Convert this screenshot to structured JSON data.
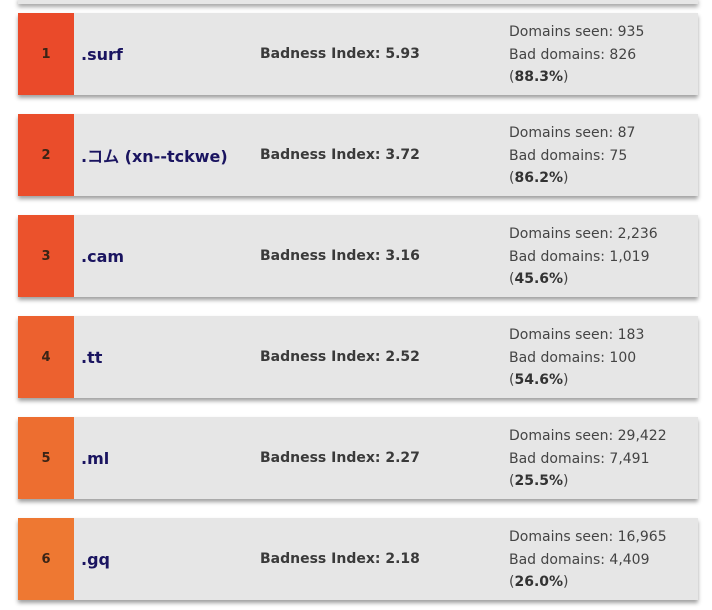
{
  "rows": [
    {
      "rank": "1",
      "tld": ".surf",
      "badness_label": "Badness Index: 5.93",
      "domains_seen": "Domains seen: 935",
      "bad_domains": "Bad domains: 826",
      "percent": "88.3%",
      "rank_color": "#ea4a2a"
    },
    {
      "rank": "2",
      "tld": ".コム (xn--tckwe)",
      "badness_label": "Badness Index: 3.72",
      "domains_seen": "Domains seen: 87",
      "bad_domains": "Bad domains: 75",
      "percent": "86.2%",
      "rank_color": "#ea4d2b"
    },
    {
      "rank": "3",
      "tld": ".cam",
      "badness_label": "Badness Index: 3.16",
      "domains_seen": "Domains seen: 2,236",
      "bad_domains": "Bad domains: 1,019",
      "percent": "45.6%",
      "rank_color": "#eb522c"
    },
    {
      "rank": "4",
      "tld": ".tt",
      "badness_label": "Badness Index: 2.52",
      "domains_seen": "Domains seen: 183",
      "bad_domains": "Bad domains: 100",
      "percent": "54.6%",
      "rank_color": "#ec612f"
    },
    {
      "rank": "5",
      "tld": ".ml",
      "badness_label": "Badness Index: 2.27",
      "domains_seen": "Domains seen: 29,422",
      "bad_domains": "Bad domains: 7,491",
      "percent": "25.5%",
      "rank_color": "#ed6e30"
    },
    {
      "rank": "6",
      "tld": ".gq",
      "badness_label": "Badness Index: 2.18",
      "domains_seen": "Domains seen: 16,965",
      "bad_domains": "Bad domains: 4,409",
      "percent": "26.0%",
      "rank_color": "#ee7832"
    }
  ]
}
